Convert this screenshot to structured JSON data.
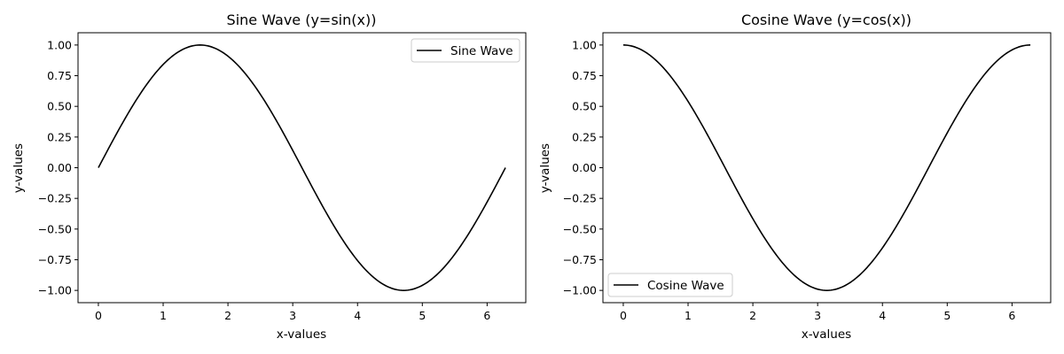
{
  "chart_data": [
    {
      "type": "line",
      "title": "Sine Wave (y=sin(x))",
      "xlabel": "x-values",
      "ylabel": "y-values",
      "function": "sin",
      "x_range": [
        0,
        6.283185
      ],
      "xlim": [
        -0.314,
        6.597
      ],
      "ylim": [
        -1.1,
        1.1
      ],
      "xticks": [
        0,
        1,
        2,
        3,
        4,
        5,
        6
      ],
      "yticks": [
        -1.0,
        -0.75,
        -0.5,
        -0.25,
        0.0,
        0.25,
        0.5,
        0.75,
        1.0
      ],
      "xtick_labels": [
        "0",
        "1",
        "2",
        "3",
        "4",
        "5",
        "6"
      ],
      "ytick_labels": [
        "−1.00",
        "−0.75",
        "−0.50",
        "−0.25",
        "0.00",
        "0.25",
        "0.50",
        "0.75",
        "1.00"
      ],
      "grid": false,
      "legend_position": "upper right",
      "series": [
        {
          "name": "Sine Wave",
          "color": "#000000",
          "x": [
            0,
            0.5,
            1.0,
            1.5708,
            2.0,
            2.5,
            3.0,
            3.1416,
            3.5,
            4.0,
            4.5,
            4.7124,
            5.0,
            5.5,
            6.0,
            6.2832
          ],
          "y": [
            0,
            0.479,
            0.841,
            1.0,
            0.909,
            0.598,
            0.141,
            0.0,
            -0.351,
            -0.757,
            -0.978,
            -1.0,
            -0.959,
            -0.706,
            -0.279,
            0.0
          ]
        }
      ]
    },
    {
      "type": "line",
      "title": "Cosine Wave (y=cos(x))",
      "xlabel": "x-values",
      "ylabel": "y-values",
      "function": "cos",
      "x_range": [
        0,
        6.283185
      ],
      "xlim": [
        -0.314,
        6.597
      ],
      "ylim": [
        -1.1,
        1.1
      ],
      "xticks": [
        0,
        1,
        2,
        3,
        4,
        5,
        6
      ],
      "yticks": [
        -1.0,
        -0.75,
        -0.5,
        -0.25,
        0.0,
        0.25,
        0.5,
        0.75,
        1.0
      ],
      "xtick_labels": [
        "0",
        "1",
        "2",
        "3",
        "4",
        "5",
        "6"
      ],
      "ytick_labels": [
        "−1.00",
        "−0.75",
        "−0.50",
        "−0.25",
        "0.00",
        "0.25",
        "0.50",
        "0.75",
        "1.00"
      ],
      "grid": false,
      "legend_position": "lower left",
      "series": [
        {
          "name": "Cosine Wave",
          "color": "#000000",
          "x": [
            0,
            0.5,
            1.0,
            1.5708,
            2.0,
            2.5,
            3.0,
            3.1416,
            3.5,
            4.0,
            4.5,
            4.7124,
            5.0,
            5.5,
            6.0,
            6.2832
          ],
          "y": [
            1.0,
            0.878,
            0.54,
            0.0,
            -0.416,
            -0.801,
            -0.99,
            -1.0,
            -0.936,
            -0.654,
            -0.211,
            0.0,
            0.284,
            0.709,
            0.96,
            1.0
          ]
        }
      ]
    }
  ]
}
